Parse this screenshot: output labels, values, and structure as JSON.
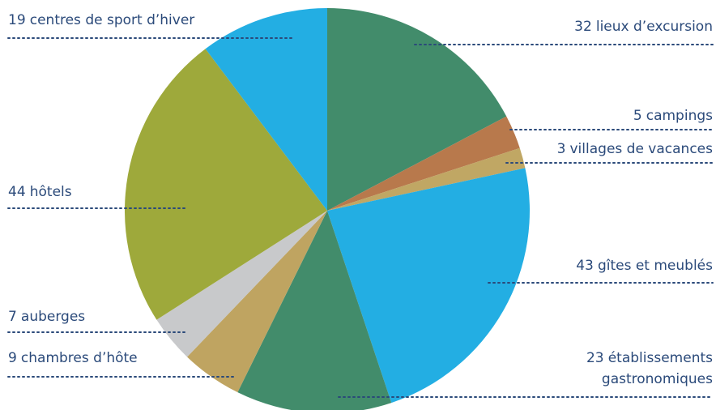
{
  "chart_data": {
    "type": "pie",
    "categories": [
      "lieux d’excursion",
      "campings",
      "villages de vacances",
      "gîtes et meublés",
      "établissements gastronomiques",
      "chambres d’hôte",
      "auberges",
      "hôtels",
      "centres de sport d’hiver"
    ],
    "values": [
      32,
      5,
      3,
      43,
      23,
      9,
      7,
      44,
      19
    ],
    "colors": [
      "#428c6b",
      "#b8794c",
      "#c0a764",
      "#23aee3",
      "#428c6b",
      "#bfa461",
      "#c8c9cb",
      "#9ea93b",
      "#23aee3"
    ]
  }
}
